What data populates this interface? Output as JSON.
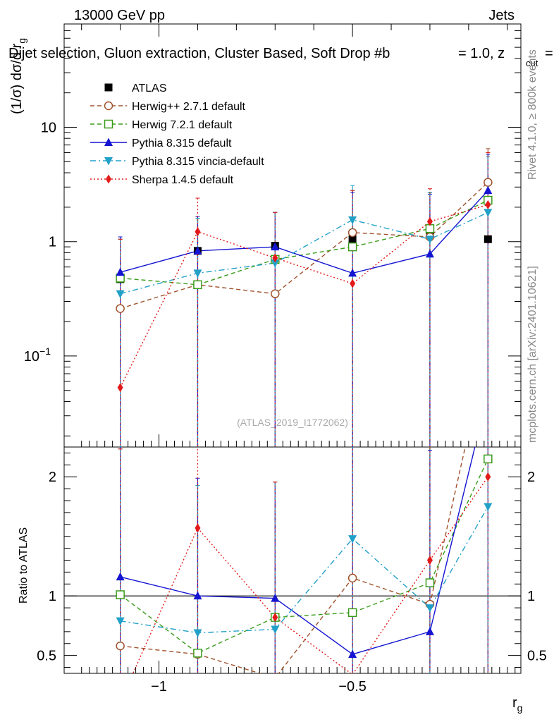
{
  "header": {
    "energy_label": "13000 GeV pp",
    "category_label": "Jets",
    "selection_label": "Dijet selection, Gluon extraction, Cluster Based, Soft Drop #b",
    "selection_beta": "= 1.0, z",
    "selection_cut_sub": "cut",
    "selection_tail": "="
  },
  "side_labels": {
    "rivet": "Rivet 4.1.0, ≥ 800k events",
    "mcplots": "mcplots.cern.ch [arXiv:2401.10621]"
  },
  "watermark": "(ATLAS_2019_I1772062)",
  "colors": {
    "atlas": "#000000",
    "herwigpp": "#a0522d",
    "herwig7": "#3a9c1a",
    "pythia": "#1414d2",
    "vincia": "#21a0c8",
    "sherpa": "#e31a1a"
  },
  "chart_data": [
    {
      "type": "line",
      "panel": "main",
      "ylabel_main": "(1/σ) dσ/d r",
      "ylabel_sub": "g",
      "yscale": "log",
      "ylim": [
        0.016,
        80
      ],
      "xlim": [
        -1.245,
        -0.065
      ],
      "y_tick_labels": [
        {
          "value": 0.1,
          "base": "10",
          "exp": "−1"
        },
        {
          "value": 1,
          "base": "1",
          "exp": ""
        },
        {
          "value": 10,
          "base": "10",
          "exp": ""
        }
      ],
      "x": [
        -1.1,
        -0.9,
        -0.7,
        -0.5,
        -0.3,
        -0.15
      ],
      "series": [
        {
          "name": "ATLAS",
          "legend": "ATLAS",
          "key": "atlas",
          "marker": "square",
          "line": "none",
          "values": [
            0.47,
            0.83,
            0.92,
            1.05,
            1.17,
            1.05
          ]
        },
        {
          "name": "Herwig++ 2.7.1 default",
          "legend": "Herwig++ 2.7.1 default",
          "key": "herwigpp",
          "marker": "circle-open",
          "line": "dashed",
          "values": [
            0.26,
            0.42,
            0.35,
            1.2,
            1.1,
            3.3
          ],
          "err_hi": [
            1.05,
            1.6,
            1.8,
            2.8,
            2.7,
            6.5
          ]
        },
        {
          "name": "Herwig 7.2.1 default",
          "legend": "Herwig 7.2.1 default",
          "key": "herwig7",
          "marker": "square-open",
          "line": "dashed",
          "values": [
            0.48,
            0.42,
            0.7,
            0.9,
            1.3,
            2.3
          ],
          "err_hi": [
            1.05,
            1.6,
            1.8,
            2.8,
            2.7,
            6.0
          ]
        },
        {
          "name": "Pythia 8.315 default",
          "legend": "Pythia 8.315 default",
          "key": "pythia",
          "marker": "triangle",
          "line": "solid",
          "values": [
            0.54,
            0.83,
            0.9,
            0.53,
            0.78,
            2.8
          ],
          "err_hi": [
            1.1,
            1.65,
            1.8,
            2.7,
            2.6,
            5.8
          ]
        },
        {
          "name": "Pythia 8.315 vincia-default",
          "legend": "Pythia 8.315 vincia-default",
          "key": "vincia",
          "marker": "triangle-down",
          "line": "dashdot",
          "values": [
            0.35,
            0.53,
            0.65,
            1.55,
            1.05,
            1.8
          ],
          "err_hi": [
            1.05,
            1.6,
            1.8,
            3.1,
            2.7,
            5.5
          ]
        },
        {
          "name": "Sherpa 1.4.5 default",
          "legend": "Sherpa 1.4.5 default",
          "key": "sherpa",
          "marker": "diamond",
          "line": "dotted",
          "values": [
            0.053,
            1.22,
            0.72,
            0.43,
            1.5,
            2.1
          ],
          "err_hi": [
            1.05,
            2.4,
            1.8,
            2.8,
            2.9,
            6.0
          ]
        }
      ]
    },
    {
      "type": "line",
      "panel": "ratio",
      "ylabel": "Ratio to ATLAS",
      "ylim": [
        0.35,
        2.25
      ],
      "xlim": [
        -1.245,
        -0.065
      ],
      "y_ticks": [
        0.5,
        1,
        2
      ],
      "y_tick_labels": [
        "0.5",
        "1",
        "2"
      ],
      "x_ticks": [
        -1,
        -0.5
      ],
      "x_tick_labels": [
        "−1",
        "−0.5"
      ],
      "xlabel_main": "r",
      "xlabel_sub": "g",
      "reference": 1,
      "x": [
        -1.1,
        -0.9,
        -0.7,
        -0.5,
        -0.3,
        -0.15
      ],
      "series": [
        {
          "name": "Herwig++ 2.7.1 default",
          "key": "herwigpp",
          "marker": "circle-open",
          "line": "dashed",
          "values": [
            0.58,
            0.51,
            0.31,
            1.15,
            0.93,
            3.1
          ]
        },
        {
          "name": "Herwig 7.2.1 default",
          "key": "herwig7",
          "marker": "square-open",
          "line": "dashed",
          "values": [
            1.01,
            0.52,
            0.82,
            0.86,
            1.11,
            2.15
          ]
        },
        {
          "name": "Pythia 8.315 default",
          "key": "pythia",
          "marker": "triangle",
          "line": "solid",
          "values": [
            1.16,
            1.0,
            0.98,
            0.51,
            0.7,
            2.7
          ]
        },
        {
          "name": "Pythia 8.315 vincia-default",
          "key": "vincia",
          "marker": "triangle-down",
          "line": "dashdot",
          "values": [
            0.79,
            0.69,
            0.72,
            1.48,
            0.9,
            1.75
          ]
        },
        {
          "name": "Sherpa 1.4.5 default",
          "key": "sherpa",
          "marker": "diamond",
          "line": "dotted",
          "values": [
            0.11,
            1.57,
            0.82,
            0.34,
            1.3,
            2.0
          ]
        }
      ]
    }
  ]
}
